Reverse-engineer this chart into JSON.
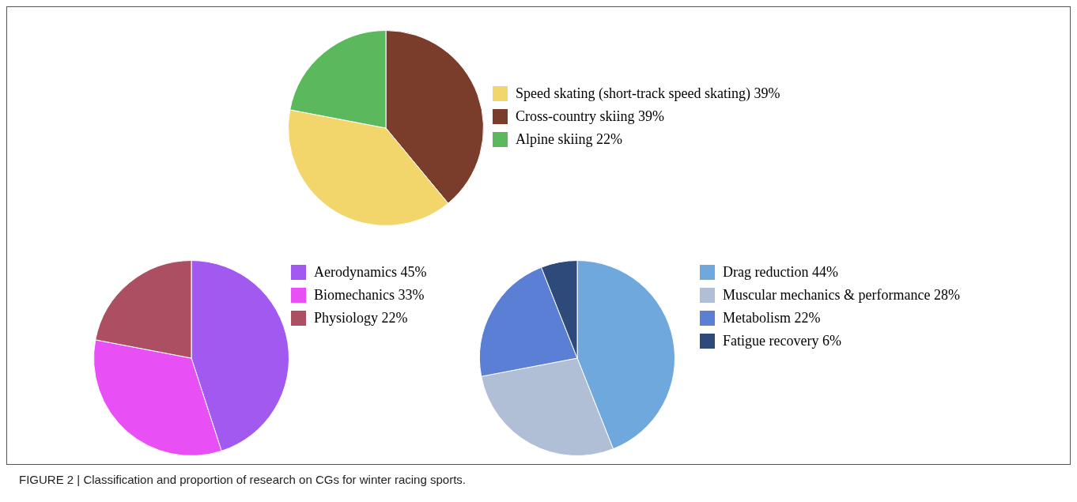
{
  "chart_data": [
    {
      "type": "pie",
      "categories": [
        "Speed skating (short-track speed skating) 39%",
        "Cross-country skiing 39%",
        "Alpine skiing 22%"
      ],
      "values": [
        39,
        39,
        22
      ],
      "colors": [
        "#f2d66b",
        "#7b3d2b",
        "#5cb85c"
      ],
      "legend": "right",
      "annotations": [
        "FIGURE 2 | Classification and proportion of research on CGs for winter racing sports."
      ]
    },
    {
      "type": "pie",
      "categories": [
        "Aerodynamics 45%",
        "Biomechanics 33%",
        "Physiology 22%"
      ],
      "values": [
        45,
        33,
        22
      ],
      "colors": [
        "#a259f0",
        "#e84ff5",
        "#ad4f62"
      ],
      "legend": "right"
    },
    {
      "type": "pie",
      "categories": [
        "Drag reduction 44%",
        "Muscular mechanics & performance 28%",
        "Metabolism 22%",
        "Fatigue recovery 6%"
      ],
      "values": [
        44,
        28,
        22,
        6
      ],
      "colors": [
        "#6fa8dc",
        "#b0bfd6",
        "#5b7fd4",
        "#2e4a7a"
      ],
      "legend": "right"
    }
  ]
}
